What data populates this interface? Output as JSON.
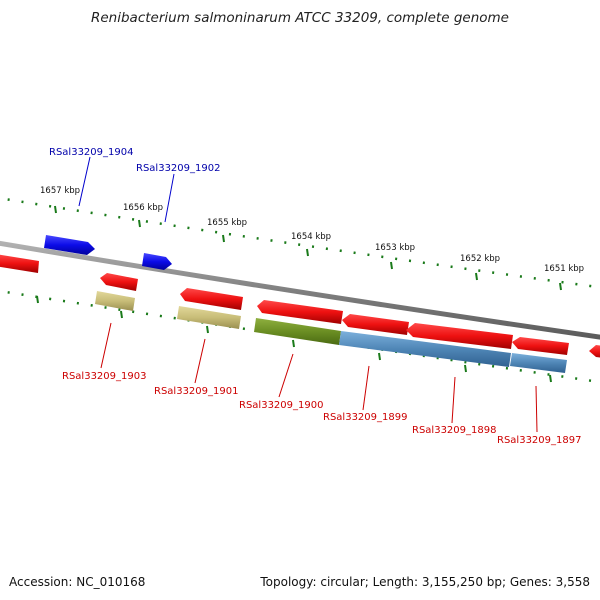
{
  "title": "Renibacterium salmoninarum ATCC 33209, complete genome",
  "footer": {
    "accession": "Accession: NC_010168",
    "summary": "Topology: circular; Length: 3,155,250 bp; Genes: 3,558"
  },
  "colors": {
    "forward_gene": "#1010ee",
    "forward_label": "#0000aa",
    "reverse_gene": "#ee1111",
    "reverse_label": "#cc0000",
    "cds_olive": "#6b8e23",
    "cds_khaki": "#c8bd78",
    "cds_steel": "#4f86b6",
    "backbone": "#808080",
    "ticks": "#1a7a1a"
  },
  "scale": {
    "ticks": [
      "1657 kbp",
      "1656 kbp",
      "1655 kbp",
      "1654 kbp",
      "1653 kbp",
      "1652 kbp",
      "1651 kbp"
    ]
  },
  "forward_genes": [
    {
      "label": "RSal33209_1904"
    },
    {
      "label": "RSal33209_1902"
    }
  ],
  "reverse_genes": [
    {
      "label": "RSal33209_1903"
    },
    {
      "label": "RSal33209_1901"
    },
    {
      "label": "RSal33209_1900"
    },
    {
      "label": "RSal33209_1899"
    },
    {
      "label": "RSal33209_1898"
    },
    {
      "label": "RSal33209_1897"
    }
  ]
}
